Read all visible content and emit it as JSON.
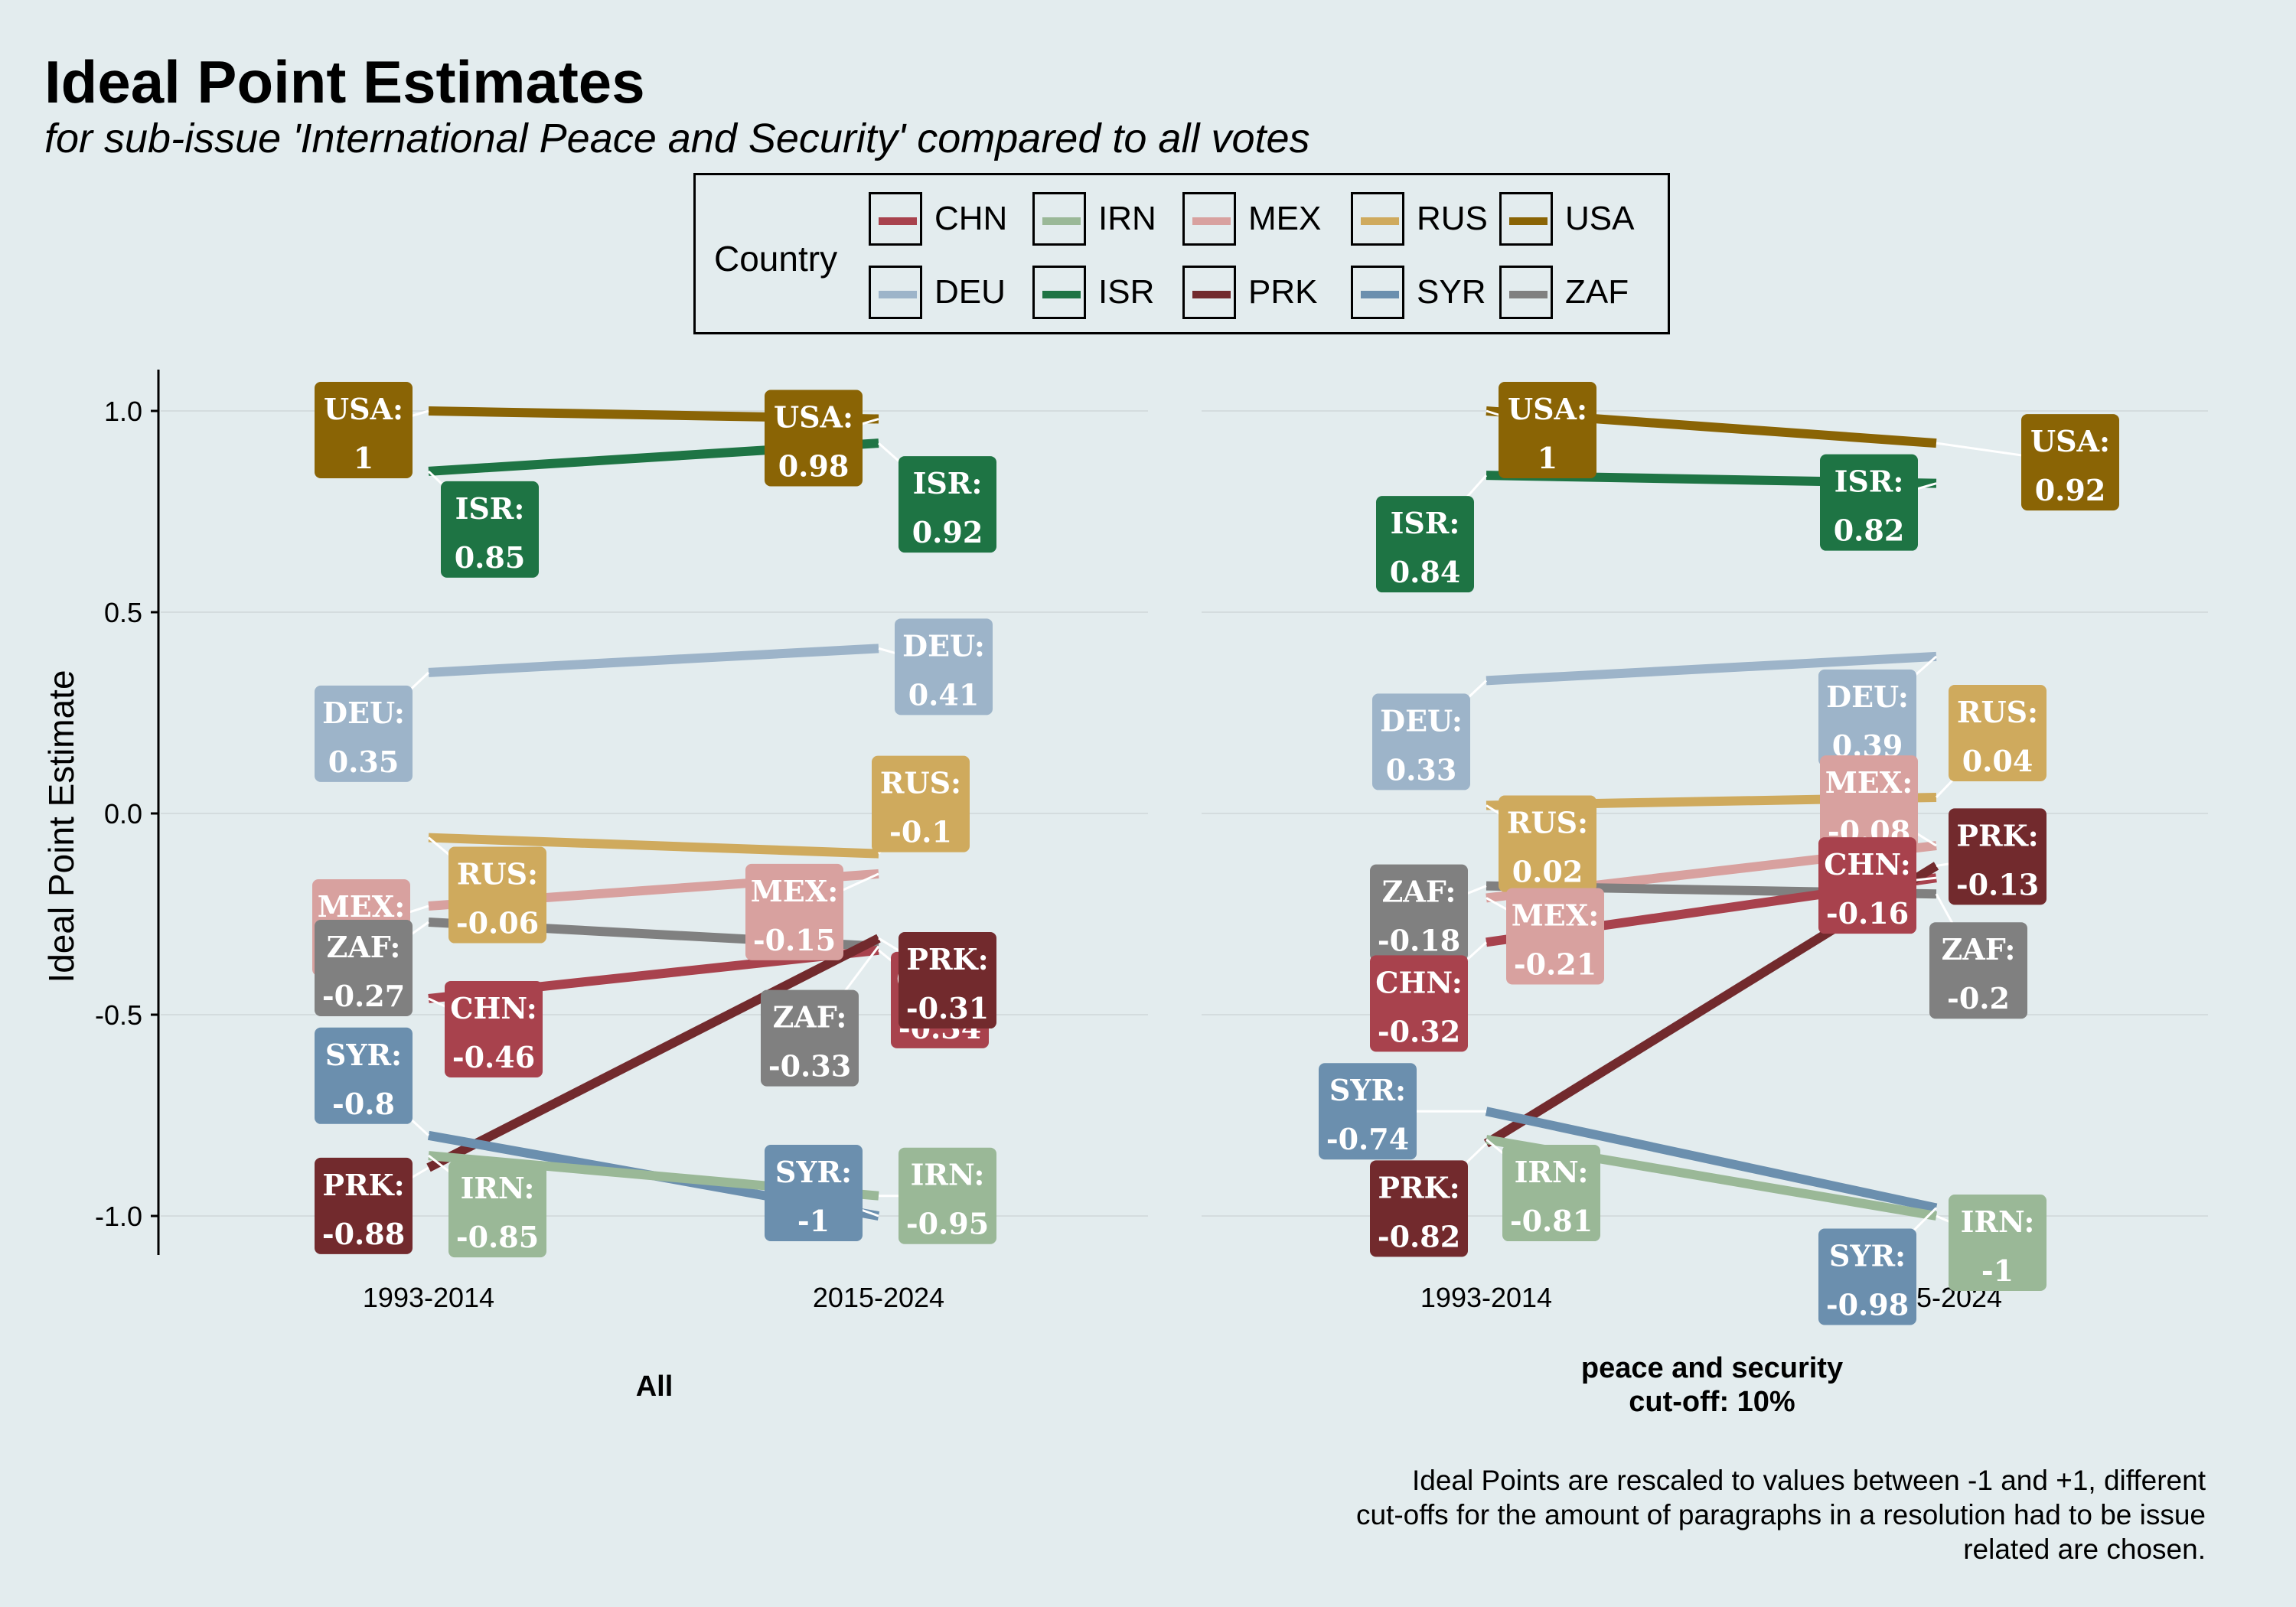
{
  "title": "Ideal Point Estimates",
  "subtitle": "for sub-issue 'International Peace and Security' compared to all votes",
  "legend": {
    "title": "Country",
    "items": [
      {
        "code": "CHN",
        "color": "#a8424d"
      },
      {
        "code": "IRN",
        "color": "#9ab897"
      },
      {
        "code": "MEX",
        "color": "#d8a19f"
      },
      {
        "code": "RUS",
        "color": "#cfaa5d"
      },
      {
        "code": "USA",
        "color": "#8a6405"
      },
      {
        "code": "DEU",
        "color": "#9db4c9"
      },
      {
        "code": "ISR",
        "color": "#1e7444"
      },
      {
        "code": "PRK",
        "color": "#722a2d"
      },
      {
        "code": "SYR",
        "color": "#6b8fae"
      },
      {
        "code": "ZAF",
        "color": "#808080"
      }
    ]
  },
  "yaxis_title": "Ideal Point Estimate",
  "caption": [
    "Ideal Points are rescaled to values between -1 and +1, different",
    "cut-offs for the amount of paragraphs in a resolution had to be issue",
    "related are chosen."
  ],
  "chart_data": [
    {
      "type": "line",
      "facet_label": [
        "All"
      ],
      "categories": [
        "1993-2014",
        "2015-2024"
      ],
      "ylim": [
        -1.1,
        1.1
      ],
      "yticks": [
        1.0,
        0.5,
        0.0,
        -0.5,
        -1.0
      ],
      "ytick_labels": [
        "1.0",
        "0.5",
        "0.0",
        "-0.5",
        "-1.0"
      ],
      "series": [
        {
          "name": "USA",
          "values": [
            1,
            0.98
          ],
          "labels": [
            "1",
            "0.98"
          ]
        },
        {
          "name": "ISR",
          "values": [
            0.85,
            0.92
          ],
          "labels": [
            "0.85",
            "0.92"
          ]
        },
        {
          "name": "DEU",
          "values": [
            0.35,
            0.41
          ],
          "labels": [
            "0.35",
            "0.41"
          ]
        },
        {
          "name": "RUS",
          "values": [
            -0.06,
            -0.1
          ],
          "labels": [
            "-0.06",
            "-0.1"
          ]
        },
        {
          "name": "MEX",
          "values": [
            -0.23,
            -0.15
          ],
          "labels": [
            "-0.23",
            "-0.15"
          ]
        },
        {
          "name": "ZAF",
          "values": [
            -0.27,
            -0.33
          ],
          "labels": [
            "-0.27",
            "-0.33"
          ]
        },
        {
          "name": "CHN",
          "values": [
            -0.46,
            -0.34
          ],
          "labels": [
            "-0.46",
            "-0.34"
          ]
        },
        {
          "name": "PRK",
          "values": [
            -0.88,
            -0.31
          ],
          "labels": [
            "-0.88",
            "-0.31"
          ]
        },
        {
          "name": "SYR",
          "values": [
            -0.8,
            -1
          ],
          "labels": [
            "-0.8",
            "-1"
          ]
        },
        {
          "name": "IRN",
          "values": [
            -0.85,
            -0.95
          ],
          "labels": [
            "-0.85",
            "-0.95"
          ]
        }
      ]
    },
    {
      "type": "line",
      "facet_label": [
        "peace and security",
        "cut-off: 10%"
      ],
      "categories": [
        "1993-2014",
        "2015-2024"
      ],
      "ylim": [
        -1.1,
        1.1
      ],
      "yticks": [
        1.0,
        0.5,
        0.0,
        -0.5,
        -1.0
      ],
      "ytick_labels": [
        "1.0",
        "0.5",
        "0.0",
        "-0.5",
        "-1.0"
      ],
      "series": [
        {
          "name": "USA",
          "values": [
            1,
            0.92
          ],
          "labels": [
            "1",
            "0.92"
          ]
        },
        {
          "name": "ISR",
          "values": [
            0.84,
            0.82
          ],
          "labels": [
            "0.84",
            "0.82"
          ]
        },
        {
          "name": "DEU",
          "values": [
            0.33,
            0.39
          ],
          "labels": [
            "0.33",
            "0.39"
          ]
        },
        {
          "name": "RUS",
          "values": [
            0.02,
            0.04
          ],
          "labels": [
            "0.02",
            "0.04"
          ]
        },
        {
          "name": "MEX",
          "values": [
            -0.21,
            -0.08
          ],
          "labels": [
            "-0.21",
            "-0.08"
          ]
        },
        {
          "name": "ZAF",
          "values": [
            -0.18,
            -0.2
          ],
          "labels": [
            "-0.18",
            "-0.2"
          ]
        },
        {
          "name": "CHN",
          "values": [
            -0.32,
            -0.16
          ],
          "labels": [
            "-0.32",
            "-0.16"
          ]
        },
        {
          "name": "PRK",
          "values": [
            -0.82,
            -0.13
          ],
          "labels": [
            "-0.82",
            "-0.13"
          ]
        },
        {
          "name": "SYR",
          "values": [
            -0.74,
            -0.98
          ],
          "labels": [
            "-0.74",
            "-0.98"
          ]
        },
        {
          "name": "IRN",
          "values": [
            -0.81,
            -1
          ],
          "labels": [
            "-0.81",
            "-1"
          ]
        }
      ]
    }
  ]
}
